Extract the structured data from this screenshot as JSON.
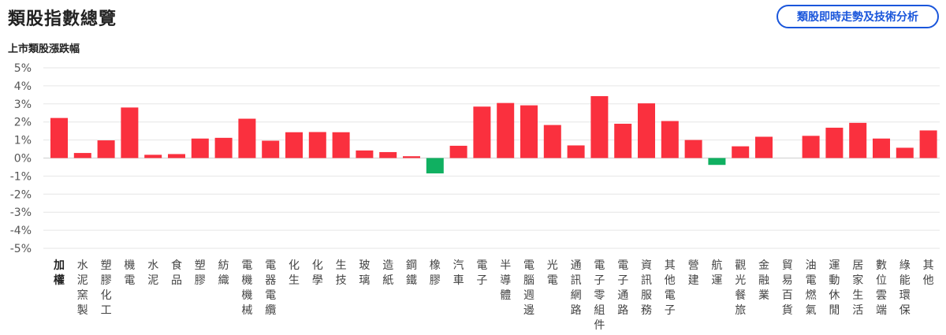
{
  "header": {
    "title": "類股指數總覽",
    "detail_button_label": "類股即時走勢及技術分析"
  },
  "colors": {
    "up": "#fa303e",
    "down": "#10b061",
    "accent": "#1a56db"
  },
  "chart_data": {
    "type": "bar",
    "title": "上市類股漲跌幅",
    "ylim": [
      -5,
      5
    ],
    "yticks": [
      "5%",
      "4%",
      "3%",
      "2%",
      "1%",
      "0%",
      "-1%",
      "-2%",
      "-3%",
      "-4%",
      "-5%"
    ],
    "grid": true,
    "categories": [
      "加權",
      "水泥窯製",
      "塑膠化工",
      "機電",
      "水泥",
      "食品",
      "塑膠",
      "紡織",
      "電機機械",
      "電器電纜",
      "化生",
      "化學",
      "生技",
      "玻璃",
      "造紙",
      "鋼鐵",
      "橡膠",
      "汽車",
      "電子",
      "半導體",
      "電腦週邊",
      "光電",
      "通訊網路",
      "電子零組件",
      "電子通路",
      "資訊服務",
      "其他電子",
      "營建",
      "航運",
      "觀光餐旅",
      "金融業",
      "貿易百貨",
      "油電燃氣",
      "運動休閒",
      "居家生活",
      "數位雲端",
      "綠能環保",
      "其他"
    ],
    "values": [
      2.22,
      0.28,
      0.98,
      2.8,
      0.18,
      0.22,
      1.08,
      1.12,
      2.18,
      0.96,
      1.43,
      1.44,
      1.43,
      0.42,
      0.33,
      0.1,
      -0.85,
      0.68,
      2.85,
      3.05,
      2.92,
      1.83,
      0.7,
      3.43,
      1.9,
      3.03,
      2.05,
      1.0,
      -0.38,
      0.65,
      1.18,
      0.0,
      1.23,
      1.68,
      1.95,
      1.08,
      0.57,
      1.53
    ]
  }
}
